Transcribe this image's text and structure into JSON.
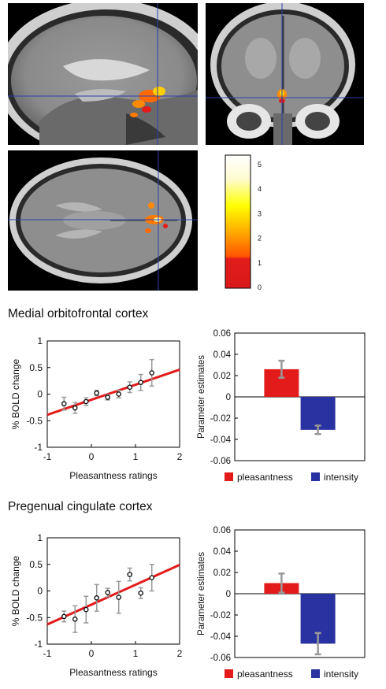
{
  "scans": {
    "colorbar_ticks": [
      "5",
      "4",
      "3",
      "2",
      "1",
      "0"
    ],
    "colorbar_colors": [
      "#ffffff",
      "#fffbd0",
      "#ffff00",
      "#ffaa00",
      "#ff5500",
      "#e31b1b"
    ]
  },
  "sections": [
    {
      "title": "Medial orbitofrontal cortex"
    },
    {
      "title": "Pregenual cingulate cortex"
    }
  ],
  "chart_data": [
    {
      "type": "scatter",
      "section": "Medial orbitofrontal cortex",
      "xlabel": "Pleasantness ratings",
      "ylabel": "% BOLD change",
      "xlim": [
        -1,
        2
      ],
      "ylim": [
        -1,
        1
      ],
      "xticks": [
        "-1",
        "0",
        "1",
        "2"
      ],
      "yticks": [
        "1",
        "0.5",
        "0",
        "-0.5",
        "-1"
      ],
      "points": [
        {
          "x": -0.62,
          "y": -0.18,
          "err": 0.12
        },
        {
          "x": -0.37,
          "y": -0.26,
          "err": 0.1
        },
        {
          "x": -0.12,
          "y": -0.14,
          "err": 0.07
        },
        {
          "x": 0.12,
          "y": 0.02,
          "err": 0.05
        },
        {
          "x": 0.37,
          "y": -0.06,
          "err": 0.05
        },
        {
          "x": 0.62,
          "y": 0.0,
          "err": 0.07
        },
        {
          "x": 0.87,
          "y": 0.13,
          "err": 0.1
        },
        {
          "x": 1.12,
          "y": 0.22,
          "err": 0.15
        },
        {
          "x": 1.37,
          "y": 0.4,
          "err": 0.25
        }
      ],
      "fit_line": {
        "x": [
          -1,
          2
        ],
        "y": [
          -0.39,
          0.46
        ],
        "color": "#e31b1b"
      },
      "marker_color": "#000000",
      "errorbar_color": "#999999"
    },
    {
      "type": "bar",
      "section": "Medial orbitofrontal cortex",
      "categories": [
        "pleasantness",
        "intensity"
      ],
      "values": [
        0.026,
        -0.031
      ],
      "errors": [
        0.008,
        0.004
      ],
      "colors": [
        "#e31b1b",
        "#2832a0"
      ],
      "ylabel": "Parameter estimates",
      "ylim": [
        -0.06,
        0.06
      ],
      "yticks": [
        "0.06",
        "0.04",
        "0.02",
        "0",
        "-0.02",
        "-0.04",
        "-0.06"
      ],
      "legend": [
        "pleasantness",
        "intensity"
      ],
      "legend_position": "bottom"
    },
    {
      "type": "scatter",
      "section": "Pregenual cingulate cortex",
      "xlabel": "Pleasantness ratings",
      "ylabel": "% BOLD change",
      "xlim": [
        -1,
        2
      ],
      "ylim": [
        -1,
        1
      ],
      "xticks": [
        "-1",
        "0",
        "1",
        "2"
      ],
      "yticks": [
        "1",
        "0.5",
        "0",
        "-0.5",
        "-1"
      ],
      "points": [
        {
          "x": -0.62,
          "y": -0.48,
          "err": 0.1
        },
        {
          "x": -0.37,
          "y": -0.53,
          "err": 0.25
        },
        {
          "x": -0.12,
          "y": -0.35,
          "err": 0.25
        },
        {
          "x": 0.12,
          "y": -0.13,
          "err": 0.25
        },
        {
          "x": 0.37,
          "y": -0.03,
          "err": 0.08
        },
        {
          "x": 0.62,
          "y": -0.12,
          "err": 0.3
        },
        {
          "x": 0.87,
          "y": 0.31,
          "err": 0.12
        },
        {
          "x": 1.12,
          "y": -0.04,
          "err": 0.1
        },
        {
          "x": 1.37,
          "y": 0.25,
          "err": 0.25
        }
      ],
      "fit_line": {
        "x": [
          -1,
          2
        ],
        "y": [
          -0.63,
          0.49
        ],
        "color": "#e31b1b"
      },
      "marker_color": "#000000",
      "errorbar_color": "#999999"
    },
    {
      "type": "bar",
      "section": "Pregenual cingulate cortex",
      "categories": [
        "pleasantness",
        "intensity"
      ],
      "values": [
        0.01,
        -0.047
      ],
      "errors": [
        0.009,
        0.01
      ],
      "colors": [
        "#e31b1b",
        "#2832a0"
      ],
      "ylabel": "Parameter estimates",
      "ylim": [
        -0.06,
        0.06
      ],
      "yticks": [
        "0.06",
        "0.04",
        "0.02",
        "0",
        "-0.02",
        "-0.04",
        "-0.06"
      ],
      "legend": [
        "pleasantness",
        "intensity"
      ],
      "legend_position": "bottom"
    }
  ]
}
